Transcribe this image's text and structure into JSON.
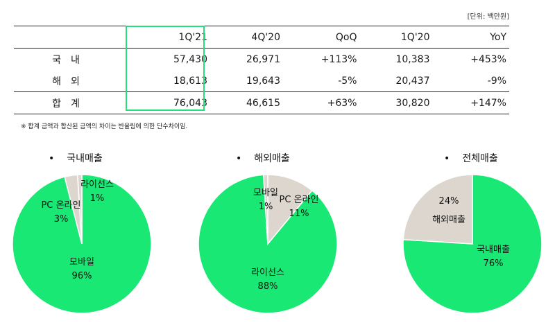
{
  "unit_label": "[단위: 백만원]",
  "table": {
    "columns": [
      "1Q'21",
      "4Q'20",
      "QoQ",
      "1Q'20",
      "YoY"
    ],
    "rows": [
      {
        "label": "국내",
        "values": [
          "57,430",
          "26,971",
          "+113%",
          "10,383",
          "+453%"
        ]
      },
      {
        "label": "해외",
        "values": [
          "18,613",
          "19,643",
          "-5%",
          "20,437",
          "-9%"
        ]
      },
      {
        "label": "합계",
        "values": [
          "76,043",
          "46,615",
          "+63%",
          "30,820",
          "+147%"
        ]
      }
    ]
  },
  "note": "※ 합계 금액과 합산된 금액의 차이는 반올림에 의한 단수차이임.",
  "bullet": "•",
  "colors": {
    "green": "#19e874",
    "beige": "#ddd6cf",
    "highlight": "#22e07a"
  },
  "chart_data": [
    {
      "type": "pie",
      "title": "국내매출",
      "slices": [
        {
          "label": "모바일",
          "value": 96
        },
        {
          "label": "PC 온라인",
          "value": 3
        },
        {
          "label": "라이선스",
          "value": 1
        }
      ]
    },
    {
      "type": "pie",
      "title": "해외매출",
      "slices": [
        {
          "label": "라이선스",
          "value": 88
        },
        {
          "label": "PC 온라인",
          "value": 11
        },
        {
          "label": "모바일",
          "value": 1
        }
      ]
    },
    {
      "type": "pie",
      "title": "전체매출",
      "slices": [
        {
          "label": "국내매출",
          "value": 76
        },
        {
          "label": "해외매출",
          "value": 24
        }
      ]
    }
  ]
}
